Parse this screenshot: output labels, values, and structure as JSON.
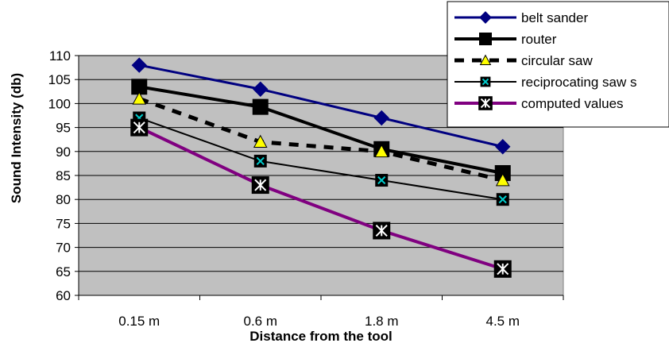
{
  "chart_data": {
    "type": "line",
    "categories": [
      "0.15 m",
      "0.6 m",
      "1.8 m",
      "4.5 m"
    ],
    "xlabel": "Distance from the tool",
    "ylabel": "Sound Intensity (db)",
    "ylim": [
      60,
      110
    ],
    "yticks": [
      60,
      65,
      70,
      75,
      80,
      85,
      90,
      95,
      100,
      105,
      110
    ],
    "grid": true,
    "plot_background": "#c0c0c0",
    "legend_position": "top-right",
    "series": [
      {
        "name": "belt sander",
        "values": [
          108,
          103,
          97,
          91
        ],
        "color": "#000080",
        "marker": "diamond",
        "dash": "solid"
      },
      {
        "name": "router",
        "values": [
          103.5,
          99.3,
          90.5,
          85.5
        ],
        "color": "#000000",
        "marker": "square",
        "dash": "solid"
      },
      {
        "name": "circular saw",
        "values": [
          101,
          92,
          90,
          84
        ],
        "color": "#000000",
        "marker": "triangle",
        "dash": "dashed",
        "marker_fill": "#ffff00"
      },
      {
        "name": "reciprocating saw s",
        "values": [
          97,
          88,
          84,
          80
        ],
        "color": "#000000",
        "marker": "x-box",
        "dash": "solid",
        "marker_fill": "#00cccc"
      },
      {
        "name": "computed values",
        "values": [
          95,
          83,
          73.5,
          65.5
        ],
        "color": "#800080",
        "marker": "asterisk-box",
        "dash": "solid"
      }
    ]
  }
}
